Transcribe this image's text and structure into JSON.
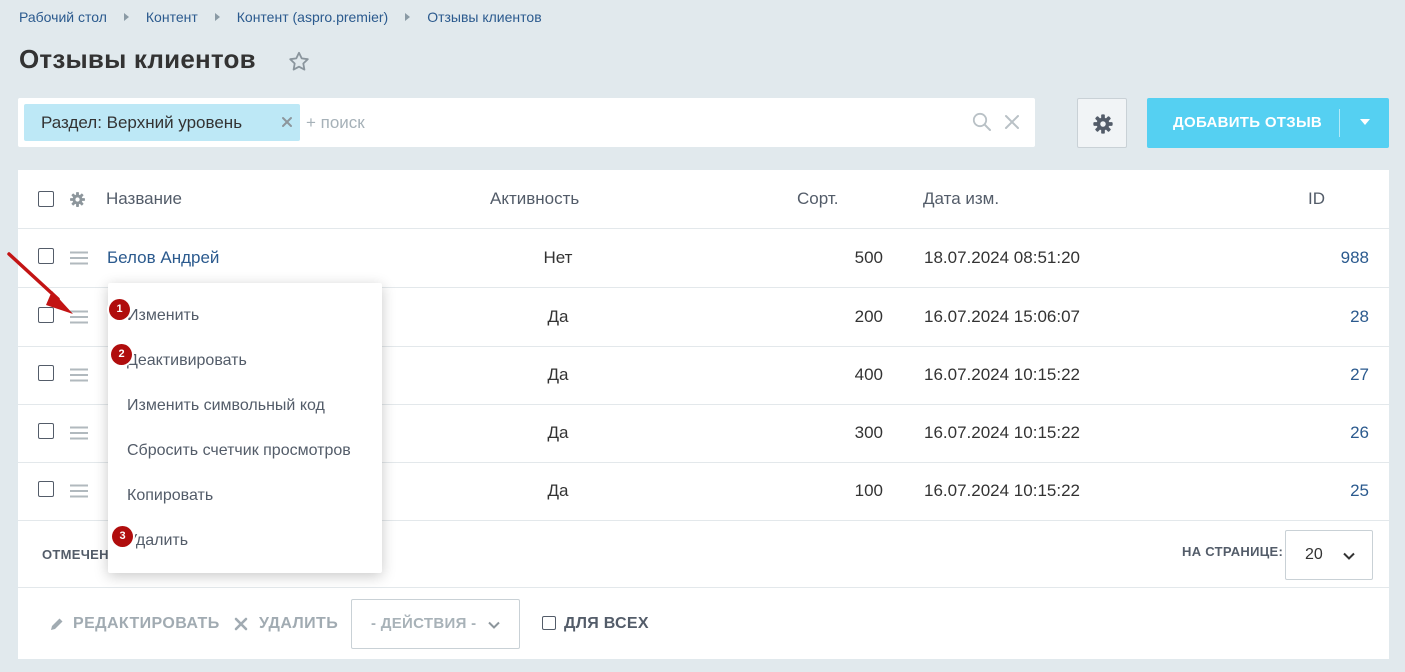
{
  "breadcrumb": [
    "Рабочий стол",
    "Контент",
    "Контент (aspro.premier)",
    "Отзывы клиентов"
  ],
  "page_title": "Отзывы клиентов",
  "filter": {
    "tag_label": "Раздел: Верхний уровень",
    "placeholder": "+ поиск"
  },
  "add_button_label": "ДОБАВИТЬ ОТЗЫВ",
  "columns": {
    "name": "Название",
    "active": "Активность",
    "sort": "Сорт.",
    "date": "Дата изм.",
    "id": "ID"
  },
  "rows": [
    {
      "name": "Белов Андрей",
      "active": "Нет",
      "sort": "500",
      "date": "18.07.2024 08:51:20",
      "id": "988"
    },
    {
      "name": "",
      "active": "Да",
      "sort": "200",
      "date": "16.07.2024 15:06:07",
      "id": "28"
    },
    {
      "name": "",
      "active": "Да",
      "sort": "400",
      "date": "16.07.2024 10:15:22",
      "id": "27"
    },
    {
      "name": "",
      "active": "Да",
      "sort": "300",
      "date": "16.07.2024 10:15:22",
      "id": "26"
    },
    {
      "name": "",
      "active": "Да",
      "sort": "100",
      "date": "16.07.2024 10:15:22",
      "id": "25"
    }
  ],
  "footer": {
    "marked_label": "ОТМЕЧЕН",
    "per_page_label": "НА СТРАНИЦЕ:",
    "per_page_value": "20"
  },
  "actions": {
    "edit": "РЕДАКТИРОВАТЬ",
    "delete": "УДАЛИТЬ",
    "select_placeholder": "- ДЕЙСТВИЯ -",
    "for_all": "ДЛЯ ВСЕХ"
  },
  "context_menu": {
    "items": [
      "Изменить",
      "Деактивировать",
      "Изменить символьный код",
      "Сбросить счетчик просмотров",
      "Копировать",
      "Удалить"
    ],
    "badges": [
      "1",
      "2",
      "3"
    ]
  },
  "colors": {
    "link": "#2b5a8e",
    "add_button": "#55d0f2",
    "filter_tag": "#bde8f6",
    "badge": "#b00d0d",
    "arrow": "#c31414"
  }
}
